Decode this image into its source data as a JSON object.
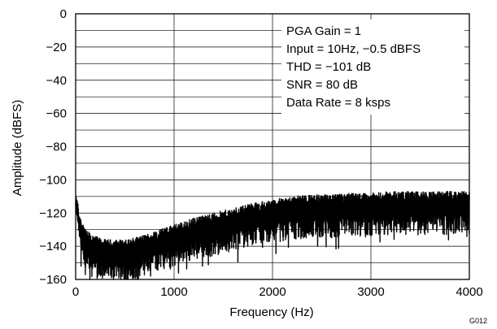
{
  "chart_data": {
    "type": "line",
    "title": "",
    "xlabel": "Frequency (Hz)",
    "ylabel": "Amplitude (dBFS)",
    "xlim": [
      0,
      4000
    ],
    "ylim": [
      -160,
      0
    ],
    "x_ticks": [
      0,
      1000,
      2000,
      3000,
      4000
    ],
    "y_ticks": [
      0,
      -20,
      -40,
      -60,
      -80,
      -100,
      -120,
      -140,
      -160
    ],
    "x_tick_labels": [
      "0",
      "1000",
      "2000",
      "3000",
      "4000"
    ],
    "y_tick_labels": [
      "0",
      "−20",
      "−40",
      "−60",
      "−80",
      "−100",
      "−120",
      "−140",
      "−160"
    ],
    "grid": true,
    "grid_y_step": 10,
    "grid_x_step": 1000,
    "line_color": "#000000",
    "series": [
      {
        "x": [
          0,
          20,
          40,
          60,
          80,
          100,
          150,
          200,
          300,
          400,
          500,
          600,
          700,
          800,
          900,
          1000,
          1200,
          1400,
          1600,
          1800,
          2000,
          2200,
          2400,
          2600,
          2800,
          3000,
          3200,
          3400,
          3600,
          3800,
          4000
        ],
        "y": [
          -113,
          -120,
          -128,
          -134,
          -138,
          -140,
          -142,
          -144,
          -146,
          -146,
          -146,
          -145,
          -143,
          -141,
          -139,
          -137,
          -133,
          -130,
          -127,
          -124,
          -122,
          -120,
          -119,
          -119,
          -118,
          -118,
          -117,
          -117,
          -117,
          -117,
          -117
        ]
      }
    ],
    "annotations": [
      "PGA Gain = 1",
      "Input = 10Hz, −0.5 dBFS",
      "THD = −101 dB",
      "SNR = 80 dB",
      "Data Rate = 8 ksps"
    ],
    "figure_code": "G012"
  }
}
